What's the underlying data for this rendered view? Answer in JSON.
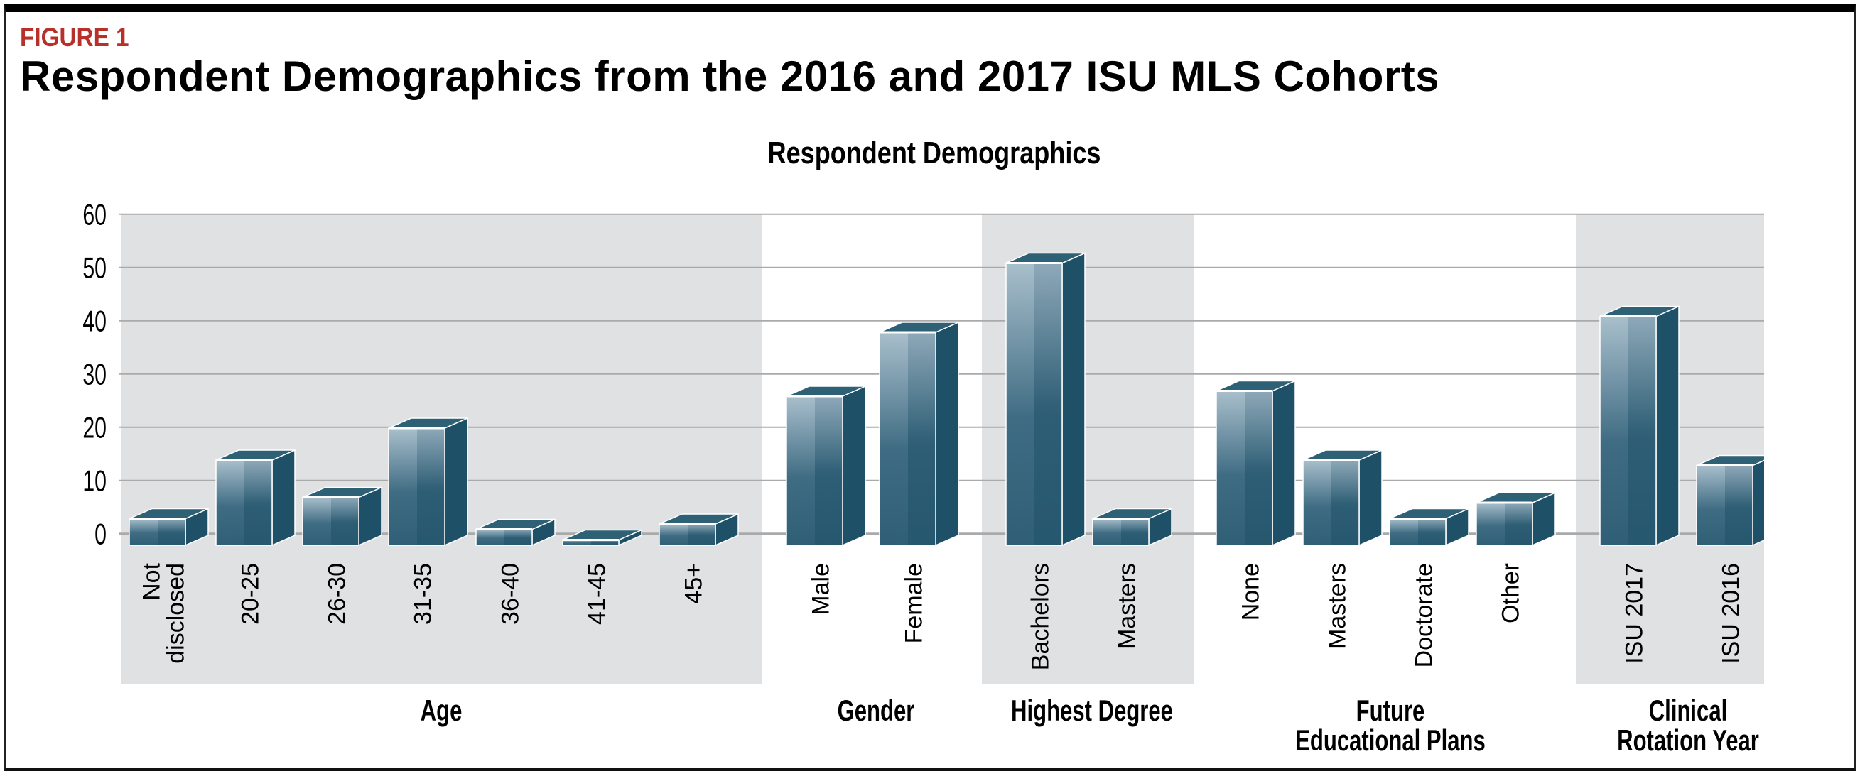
{
  "figure_label": "FIGURE 1",
  "figure_title": "Respondent Demographics from the 2016 and 2017 ISU MLS Cohorts",
  "chart_data": {
    "type": "bar",
    "style": "3d-column",
    "title": "Respondent Demographics",
    "xlabel": "",
    "ylabel": "",
    "ylim": [
      0,
      60
    ],
    "yticks": [
      "0",
      "10",
      "20",
      "30",
      "40",
      "50",
      "60"
    ],
    "grid": true,
    "colors": {
      "bar_front_light": "#9db4c3",
      "bar_front_dark": "#2f6078",
      "bar_side": "#1e5168",
      "bar_top": "#2e6076",
      "band": "#e0e1e3",
      "gridline": "#aaaaaa",
      "figure_label": "#b8302a"
    },
    "groups": [
      {
        "label": [
          "Age"
        ],
        "shaded": true,
        "categories": [
          [
            "Not",
            "disclosed"
          ],
          [
            "20-25"
          ],
          [
            "26-30"
          ],
          [
            "31-35"
          ],
          [
            "36-40"
          ],
          [
            "41-45"
          ],
          [
            "45+"
          ]
        ],
        "values": [
          5,
          16,
          9,
          22,
          3,
          1,
          4
        ]
      },
      {
        "label": [
          "Gender"
        ],
        "shaded": false,
        "categories": [
          [
            "Male"
          ],
          [
            "Female"
          ]
        ],
        "values": [
          28,
          40
        ]
      },
      {
        "label": [
          "Highest Degree"
        ],
        "shaded": true,
        "categories": [
          [
            "Bachelors"
          ],
          [
            "Masters"
          ]
        ],
        "values": [
          53,
          5
        ]
      },
      {
        "label": [
          "Future",
          "Educational Plans"
        ],
        "shaded": false,
        "categories": [
          [
            "None"
          ],
          [
            "Masters"
          ],
          [
            "Doctorate"
          ],
          [
            "Other"
          ]
        ],
        "values": [
          29,
          16,
          5,
          8
        ]
      },
      {
        "label": [
          "Clinical",
          "Rotation Year"
        ],
        "shaded": true,
        "categories": [
          [
            "ISU 2017"
          ],
          [
            "ISU 2016"
          ]
        ],
        "values": [
          43,
          15
        ]
      }
    ]
  }
}
